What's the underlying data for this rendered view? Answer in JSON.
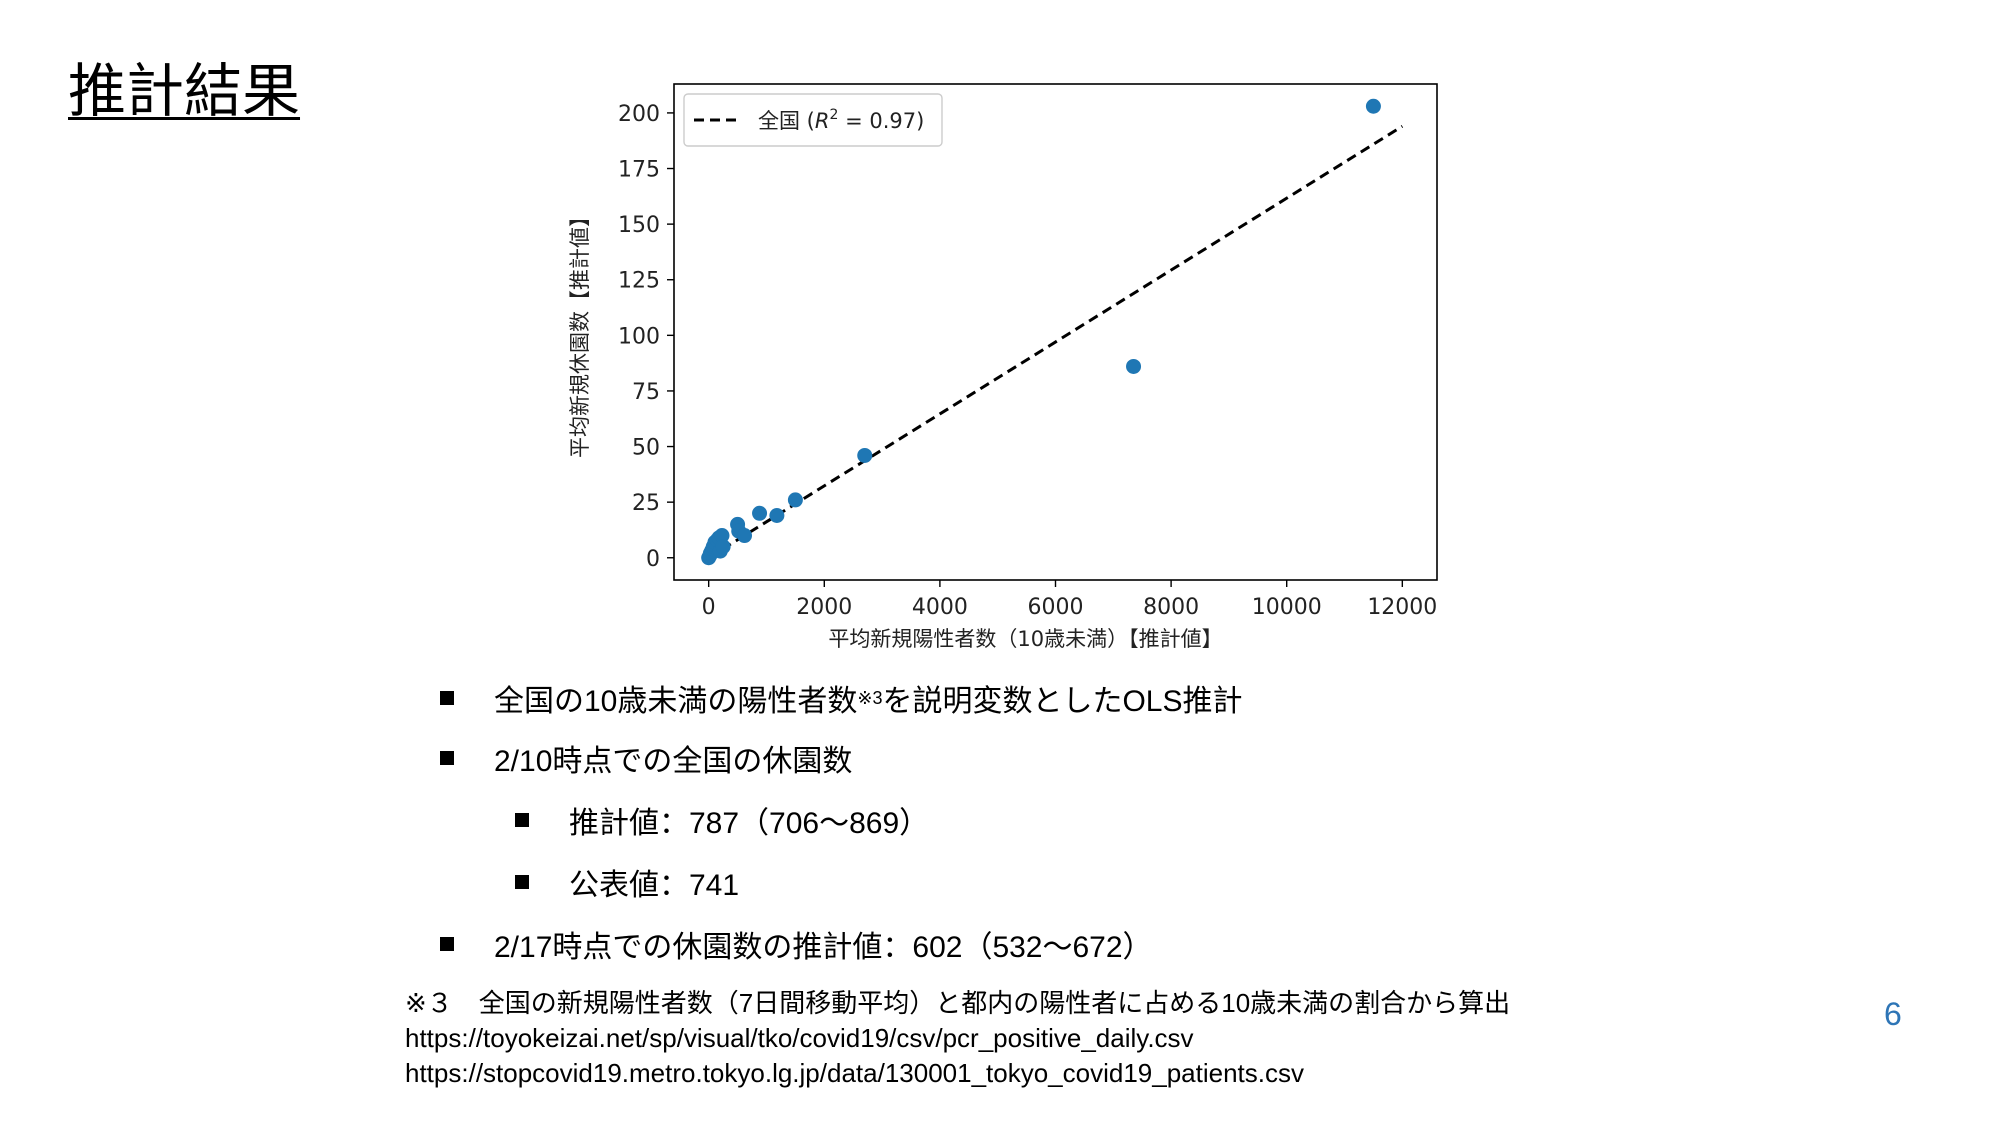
{
  "slide": {
    "title": "推計結果",
    "page_number": "6",
    "accent_color": "#2e75b6"
  },
  "bullets": [
    {
      "level": 1,
      "text": "全国の10歳未満の陽性者数",
      "sup": "※3",
      "text_after": "を説明変数としたOLS推計"
    },
    {
      "level": 1,
      "text": "2/10時点での全国の休園数"
    },
    {
      "level": 2,
      "text": "推計値：787（706〜869）"
    },
    {
      "level": 2,
      "text": "公表値：741"
    },
    {
      "level": 1,
      "text": "2/17時点での休園数の推計値：602（532〜672）"
    }
  ],
  "footnote": {
    "line1": "※３　全国の新規陽性者数（7日間移動平均）と都内の陽性者に占める10歳未満の割合から算出",
    "line2": "https://toyokeizai.net/sp/visual/tko/covid19/csv/pcr_positive_daily.csv",
    "line3": "https://stopcovid19.metro.tokyo.lg.jp/data/130001_tokyo_covid19_patients.csv"
  },
  "chart_data": {
    "type": "scatter",
    "xlabel": "平均新規陽性者数（10歳未満）【推計値】",
    "ylabel": "平均新規休園数【推計値】",
    "xlim": [
      -600,
      12600
    ],
    "ylim": [
      -10,
      213
    ],
    "x_ticks": [
      0,
      2000,
      4000,
      6000,
      8000,
      10000,
      12000
    ],
    "y_ticks": [
      0,
      25,
      50,
      75,
      100,
      125,
      150,
      175,
      200
    ],
    "grid": false,
    "legend_position": "top-left",
    "legend_label": "全国",
    "legend_r2": "0.97",
    "point_color": "#1f77b4",
    "fit_line_color": "#000000",
    "fit_line": {
      "x": [
        0,
        12000
      ],
      "y": [
        0,
        194
      ]
    },
    "points": [
      {
        "x": 0,
        "y": 0
      },
      {
        "x": 20,
        "y": 1
      },
      {
        "x": 30,
        "y": 2
      },
      {
        "x": 50,
        "y": 3
      },
      {
        "x": 70,
        "y": 4
      },
      {
        "x": 80,
        "y": 5
      },
      {
        "x": 100,
        "y": 6
      },
      {
        "x": 110,
        "y": 7
      },
      {
        "x": 150,
        "y": 8
      },
      {
        "x": 180,
        "y": 9
      },
      {
        "x": 230,
        "y": 10
      },
      {
        "x": 200,
        "y": 3
      },
      {
        "x": 250,
        "y": 5
      },
      {
        "x": 500,
        "y": 15
      },
      {
        "x": 520,
        "y": 12
      },
      {
        "x": 620,
        "y": 10
      },
      {
        "x": 880,
        "y": 20
      },
      {
        "x": 1180,
        "y": 19
      },
      {
        "x": 1500,
        "y": 26
      },
      {
        "x": 2700,
        "y": 46
      },
      {
        "x": 7350,
        "y": 86
      },
      {
        "x": 11500,
        "y": 203
      }
    ]
  }
}
